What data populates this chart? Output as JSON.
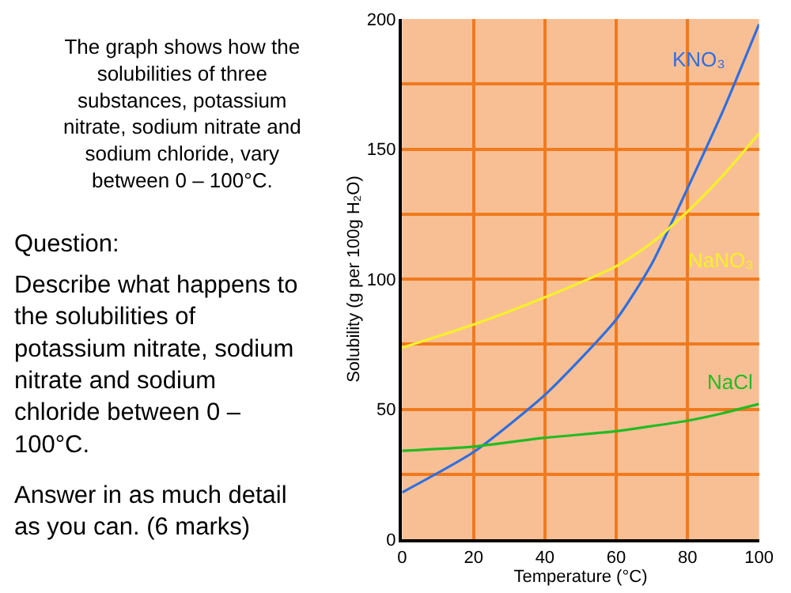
{
  "chart_data": {
    "type": "line",
    "xlabel": "Temperature (°C)",
    "ylabel": "Solubility (g per 100g H₂O)",
    "x": [
      0,
      20,
      40,
      60,
      70,
      80,
      90,
      100
    ],
    "series": [
      {
        "name": "KNO₃",
        "color": "#2f6fe0",
        "values": [
          18,
          33.5,
          55.5,
          84.5,
          106,
          135,
          165,
          198
        ]
      },
      {
        "name": "NaNO₃",
        "color": "#f5f02a",
        "values": [
          73.6,
          82.5,
          93,
          105,
          114,
          126,
          140,
          156
        ]
      },
      {
        "name": "NaCl",
        "color": "#22bb22",
        "values": [
          34,
          35.6,
          39,
          41.5,
          43.5,
          45.6,
          48.5,
          52
        ]
      }
    ],
    "xlim": [
      0,
      100
    ],
    "xticks": [
      0,
      20,
      40,
      60,
      80,
      100
    ],
    "ylim": [
      0,
      200
    ],
    "yticks": [
      0,
      {
        "value": 25,
        "label": null
      },
      50,
      {
        "value": 75,
        "label": null
      },
      100,
      {
        "value": 125,
        "label": null
      },
      150,
      {
        "value": 175,
        "label": null
      },
      200
    ],
    "grid": true,
    "legend": false,
    "marker": "none",
    "line_style": "solid",
    "annotations": [
      "The graph shows how the\nsolubilities of three\nsubstances, potassium\nnitrate, sodium nitrate and\nsodium chloride, vary\nbetween 0 – 100°C.",
      "Question:",
      "Describe what happens to\nthe solubilities of\npotassium nitrate, sodium\nnitrate and sodium\nchloride between 0 –\n100°C.",
      "Answer in as much detail\nas you can. (6 marks)"
    ]
  }
}
